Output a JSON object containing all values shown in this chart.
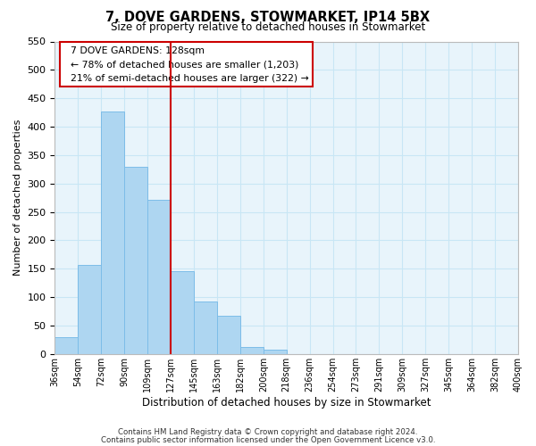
{
  "title": "7, DOVE GARDENS, STOWMARKET, IP14 5BX",
  "subtitle": "Size of property relative to detached houses in Stowmarket",
  "xlabel": "Distribution of detached houses by size in Stowmarket",
  "ylabel": "Number of detached properties",
  "footer_lines": [
    "Contains HM Land Registry data © Crown copyright and database right 2024.",
    "Contains public sector information licensed under the Open Government Licence v3.0."
  ],
  "bin_labels": [
    "36sqm",
    "54sqm",
    "72sqm",
    "90sqm",
    "109sqm",
    "127sqm",
    "145sqm",
    "163sqm",
    "182sqm",
    "200sqm",
    "218sqm",
    "236sqm",
    "254sqm",
    "273sqm",
    "291sqm",
    "309sqm",
    "327sqm",
    "345sqm",
    "364sqm",
    "382sqm",
    "400sqm"
  ],
  "bar_heights": [
    30,
    157,
    427,
    329,
    271,
    145,
    92,
    67,
    13,
    7,
    0,
    0,
    0,
    0,
    0,
    0,
    0,
    0,
    0,
    0
  ],
  "bar_color": "#aed6f1",
  "bar_edge_color": "#7dbde8",
  "reference_line_color": "#cc0000",
  "box_text_line1": "7 DOVE GARDENS: 128sqm",
  "box_text_line2": "← 78% of detached houses are smaller (1,203)",
  "box_text_line3": "21% of semi-detached houses are larger (322) →",
  "box_color": "white",
  "box_edge_color": "#cc0000",
  "ylim": [
    0,
    550
  ],
  "yticks": [
    0,
    50,
    100,
    150,
    200,
    250,
    300,
    350,
    400,
    450,
    500,
    550
  ],
  "grid_color": "#c8e6f5",
  "background_color": "#e8f4fb"
}
